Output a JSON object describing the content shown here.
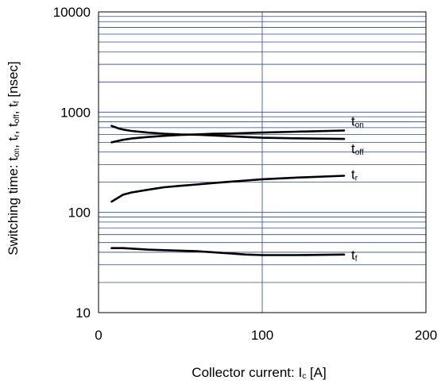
{
  "chart_data": {
    "type": "line",
    "xlabel": {
      "main": "Collector current: I",
      "sub": "c",
      "unit": " [A]"
    },
    "ylabel": {
      "parts": [
        {
          "t": "Switching time: t",
          "sub": false
        },
        {
          "t": "on",
          "sub": true
        },
        {
          "t": ", t",
          "sub": false
        },
        {
          "t": "r",
          "sub": true
        },
        {
          "t": ", t",
          "sub": false
        },
        {
          "t": "off",
          "sub": true
        },
        {
          "t": ", t",
          "sub": false
        },
        {
          "t": "f",
          "sub": true
        },
        {
          "t": " [nsec]",
          "sub": false
        }
      ]
    },
    "xlim": [
      0,
      200
    ],
    "ylim": [
      10,
      10000
    ],
    "yscale": "log",
    "grid": true,
    "x_ticks": [
      "0",
      "100",
      "200"
    ],
    "y_ticks": [
      "10",
      "100",
      "1000",
      "10000"
    ],
    "line_color": "#000000",
    "grid_color": "#2b4a8b",
    "series": [
      {
        "label_main": "t",
        "label_sub": "on",
        "x": [
          8,
          15,
          20,
          30,
          40,
          50,
          60,
          70,
          80,
          90,
          100,
          120,
          150
        ],
        "y": [
          500,
          530,
          545,
          565,
          580,
          592,
          600,
          608,
          612,
          618,
          625,
          638,
          655
        ]
      },
      {
        "label_main": "t",
        "label_sub": "off",
        "x": [
          8,
          12,
          15,
          20,
          30,
          40,
          50,
          60,
          70,
          80,
          90,
          100,
          120,
          150
        ],
        "y": [
          730,
          690,
          670,
          650,
          625,
          610,
          600,
          595,
          585,
          575,
          565,
          555,
          548,
          540
        ]
      },
      {
        "label_main": "t",
        "label_sub": "r",
        "x": [
          8,
          15,
          20,
          30,
          40,
          50,
          60,
          70,
          80,
          90,
          100,
          120,
          150
        ],
        "y": [
          128,
          150,
          158,
          168,
          178,
          184,
          190,
          196,
          202,
          208,
          214,
          222,
          232
        ]
      },
      {
        "label_main": "t",
        "label_sub": "f",
        "x": [
          8,
          15,
          20,
          30,
          40,
          50,
          60,
          70,
          80,
          90,
          100,
          120,
          150
        ],
        "y": [
          44,
          44,
          43.5,
          42.5,
          42,
          41.5,
          41,
          40,
          39,
          38,
          37.5,
          37.5,
          38
        ]
      }
    ]
  }
}
